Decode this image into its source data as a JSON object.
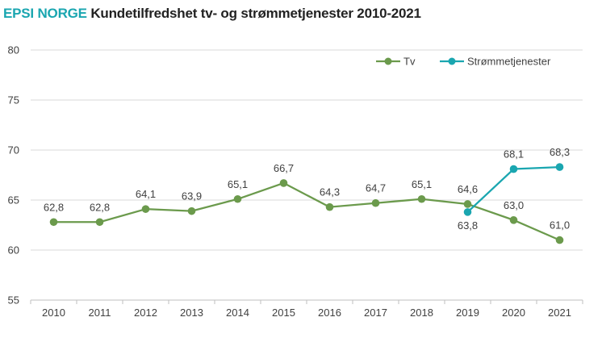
{
  "header": {
    "brand": "EPSI NORGE",
    "title": "Kundetilfredshet tv- og strømmetjenester 2010-2021"
  },
  "chart_data": {
    "type": "line",
    "title": "Kundetilfredshet tv- og strømmetjenester 2010-2021",
    "xlabel": "",
    "ylabel": "",
    "categories": [
      "2010",
      "2011",
      "2012",
      "2013",
      "2014",
      "2015",
      "2016",
      "2017",
      "2018",
      "2019",
      "2020",
      "2021"
    ],
    "ylim": [
      55,
      80
    ],
    "yticks": [
      55,
      60,
      65,
      70,
      75,
      80
    ],
    "grid": true,
    "legend_position": "top-right",
    "series": [
      {
        "name": "Tv",
        "color": "#6b9a4c",
        "values": [
          62.8,
          62.8,
          64.1,
          63.9,
          65.1,
          66.7,
          64.3,
          64.7,
          65.1,
          64.6,
          63.0,
          61.0
        ],
        "labels": [
          "62,8",
          "62,8",
          "64,1",
          "63,9",
          "65,1",
          "66,7",
          "64,3",
          "64,7",
          "65,1",
          "64,6",
          "63,0",
          "61,0"
        ]
      },
      {
        "name": "Strømmetjenester",
        "color": "#1aa6b0",
        "values": [
          null,
          null,
          null,
          null,
          null,
          null,
          null,
          null,
          null,
          63.8,
          68.1,
          68.3
        ],
        "labels": [
          null,
          null,
          null,
          null,
          null,
          null,
          null,
          null,
          null,
          "63,8",
          "68,1",
          "68,3"
        ]
      }
    ]
  }
}
